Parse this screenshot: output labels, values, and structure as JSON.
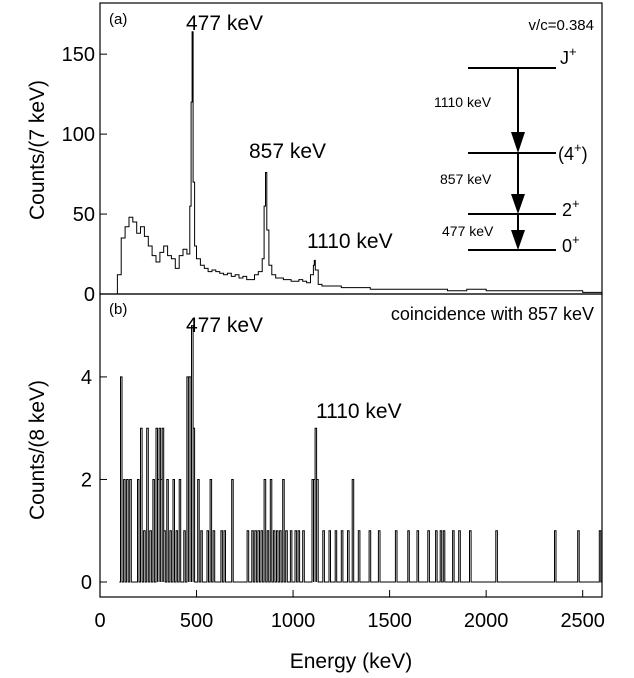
{
  "chart_data": [
    {
      "panel": "a",
      "type": "line",
      "panel_label": "(a)",
      "ylabel": "Counts/(7 keV)",
      "y_ticks": [
        0,
        50,
        100,
        150
      ],
      "ylim": [
        0,
        182
      ],
      "xlim": [
        0,
        2600
      ],
      "corner_note": "v/c=0.384",
      "peak_labels": [
        {
          "text": "477 keV",
          "x": 477
        },
        {
          "text": "857 keV",
          "x": 857
        },
        {
          "text": "1110 keV",
          "x": 1110
        }
      ],
      "series": [
        {
          "x": [
            70,
            90,
            110,
            130,
            150,
            170,
            190,
            210,
            230,
            250,
            270,
            290,
            310,
            330,
            350,
            370,
            390,
            410,
            430,
            450,
            465,
            472,
            477,
            482,
            490,
            500,
            520,
            540,
            560,
            580,
            600,
            620,
            640,
            660,
            680,
            700,
            720,
            740,
            760,
            780,
            800,
            820,
            840,
            850,
            857,
            864,
            875,
            890,
            910,
            930,
            950,
            970,
            990,
            1010,
            1030,
            1050,
            1070,
            1090,
            1105,
            1110,
            1115,
            1130,
            1150,
            1200,
            1250,
            1300,
            1350,
            1400,
            1500,
            1600,
            1700,
            1800,
            1900,
            2000,
            2100,
            2200,
            2300,
            2400,
            2500,
            2600
          ],
          "y": [
            0,
            12,
            35,
            42,
            48,
            45,
            38,
            42,
            36,
            30,
            24,
            20,
            26,
            30,
            24,
            22,
            16,
            24,
            28,
            25,
            55,
            120,
            164,
            70,
            30,
            22,
            18,
            16,
            14,
            15,
            14,
            13,
            12,
            13,
            11,
            12,
            10,
            11,
            9,
            9,
            12,
            14,
            22,
            55,
            76,
            40,
            18,
            12,
            10,
            10,
            9,
            9,
            8,
            8,
            9,
            8,
            7,
            12,
            18,
            21,
            15,
            6,
            5,
            5,
            4,
            4,
            4,
            3,
            3,
            3,
            3,
            2,
            3,
            2,
            2,
            2,
            2,
            2,
            1,
            2
          ]
        }
      ],
      "level_scheme": {
        "levels": [
          {
            "label": "J",
            "sup": "+"
          },
          {
            "label": "(4",
            "sup": "+",
            "suffix": ")"
          },
          {
            "label": "2",
            "sup": "+"
          },
          {
            "label": "0",
            "sup": "+"
          }
        ],
        "transitions": [
          "1110 keV",
          "857 keV",
          "477 keV"
        ]
      }
    },
    {
      "panel": "b",
      "type": "bar",
      "panel_label": "(b)",
      "ylabel": "Counts/(8 keV)",
      "xlabel": "Energy (keV)",
      "x_ticks": [
        0,
        500,
        1000,
        1500,
        2000,
        2500
      ],
      "y_ticks": [
        0,
        2,
        4
      ],
      "ylim": [
        0,
        5.5
      ],
      "xlim": [
        0,
        2600
      ],
      "corner_note": "coincidence with 857 keV",
      "peak_labels": [
        {
          "text": "477 keV",
          "x": 477
        },
        {
          "text": "1110 keV",
          "x": 1110
        }
      ],
      "bin_width": 8,
      "bins": [
        {
          "x": 110,
          "y": 4
        },
        {
          "x": 126,
          "y": 2
        },
        {
          "x": 142,
          "y": 2
        },
        {
          "x": 158,
          "y": 2
        },
        {
          "x": 198,
          "y": 2
        },
        {
          "x": 214,
          "y": 3
        },
        {
          "x": 230,
          "y": 1
        },
        {
          "x": 246,
          "y": 3
        },
        {
          "x": 262,
          "y": 1
        },
        {
          "x": 278,
          "y": 2
        },
        {
          "x": 294,
          "y": 3
        },
        {
          "x": 302,
          "y": 2
        },
        {
          "x": 310,
          "y": 3
        },
        {
          "x": 318,
          "y": 2
        },
        {
          "x": 326,
          "y": 3
        },
        {
          "x": 334,
          "y": 1
        },
        {
          "x": 350,
          "y": 2
        },
        {
          "x": 366,
          "y": 1
        },
        {
          "x": 382,
          "y": 2
        },
        {
          "x": 398,
          "y": 1
        },
        {
          "x": 414,
          "y": 2
        },
        {
          "x": 438,
          "y": 1
        },
        {
          "x": 454,
          "y": 4
        },
        {
          "x": 462,
          "y": 4
        },
        {
          "x": 470,
          "y": 4
        },
        {
          "x": 478,
          "y": 5
        },
        {
          "x": 486,
          "y": 3
        },
        {
          "x": 510,
          "y": 2
        },
        {
          "x": 526,
          "y": 1
        },
        {
          "x": 558,
          "y": 1
        },
        {
          "x": 574,
          "y": 2
        },
        {
          "x": 590,
          "y": 1
        },
        {
          "x": 630,
          "y": 1
        },
        {
          "x": 646,
          "y": 1
        },
        {
          "x": 686,
          "y": 2
        },
        {
          "x": 766,
          "y": 1
        },
        {
          "x": 790,
          "y": 1
        },
        {
          "x": 806,
          "y": 1
        },
        {
          "x": 822,
          "y": 1
        },
        {
          "x": 838,
          "y": 1
        },
        {
          "x": 854,
          "y": 2
        },
        {
          "x": 870,
          "y": 1
        },
        {
          "x": 886,
          "y": 2
        },
        {
          "x": 902,
          "y": 1
        },
        {
          "x": 918,
          "y": 1
        },
        {
          "x": 934,
          "y": 1
        },
        {
          "x": 950,
          "y": 2
        },
        {
          "x": 966,
          "y": 1
        },
        {
          "x": 990,
          "y": 1
        },
        {
          "x": 1014,
          "y": 1
        },
        {
          "x": 1030,
          "y": 1
        },
        {
          "x": 1054,
          "y": 1
        },
        {
          "x": 1102,
          "y": 2
        },
        {
          "x": 1110,
          "y": 2
        },
        {
          "x": 1118,
          "y": 3
        },
        {
          "x": 1126,
          "y": 2
        },
        {
          "x": 1158,
          "y": 1
        },
        {
          "x": 1190,
          "y": 1
        },
        {
          "x": 1222,
          "y": 1
        },
        {
          "x": 1254,
          "y": 1
        },
        {
          "x": 1286,
          "y": 1
        },
        {
          "x": 1310,
          "y": 2
        },
        {
          "x": 1342,
          "y": 1
        },
        {
          "x": 1398,
          "y": 1
        },
        {
          "x": 1446,
          "y": 1
        },
        {
          "x": 1534,
          "y": 1
        },
        {
          "x": 1598,
          "y": 1
        },
        {
          "x": 1646,
          "y": 1
        },
        {
          "x": 1702,
          "y": 1
        },
        {
          "x": 1742,
          "y": 1
        },
        {
          "x": 1766,
          "y": 1
        },
        {
          "x": 1782,
          "y": 1
        },
        {
          "x": 1830,
          "y": 1
        },
        {
          "x": 1862,
          "y": 1
        },
        {
          "x": 1918,
          "y": 1
        },
        {
          "x": 2054,
          "y": 1
        },
        {
          "x": 2358,
          "y": 1
        },
        {
          "x": 2478,
          "y": 1
        },
        {
          "x": 2590,
          "y": 1
        }
      ]
    }
  ]
}
